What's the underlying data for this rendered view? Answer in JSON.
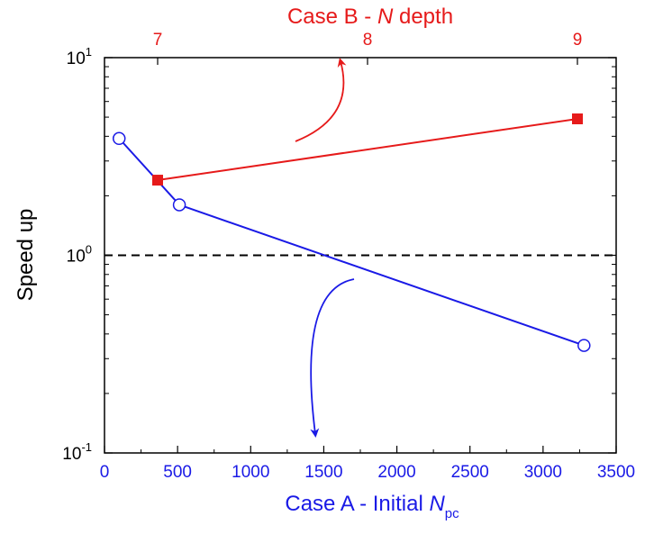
{
  "chart_data": {
    "type": "line",
    "ylabel": "Speed up",
    "ylim": [
      0.1,
      10
    ],
    "yscale": "log",
    "grid": false,
    "reference_line": {
      "y": 1,
      "style": "dashed",
      "color": "#000000"
    },
    "bottom_axis": {
      "label_prefix": "Case A - Initial ",
      "label_var": "N",
      "label_sub": "pc",
      "xlim": [
        0,
        3500
      ],
      "ticks": [
        0,
        500,
        1000,
        1500,
        2000,
        2500,
        3000,
        3500
      ],
      "tick_labels": [
        "0",
        "500",
        "1000",
        "1500",
        "2000",
        "2500",
        "3000",
        "3500"
      ],
      "color": "#1a1ae6"
    },
    "top_axis": {
      "label_prefix": "Case B - ",
      "label_var": "N",
      "label_suffix": " depth",
      "ticks": [
        7,
        8,
        9
      ],
      "tick_labels": [
        "7",
        "8",
        "9"
      ],
      "color": "#e61a1a"
    },
    "y_ticks": [
      {
        "value": 0.1,
        "base": "10",
        "exp": "-1"
      },
      {
        "value": 1,
        "base": "10",
        "exp": "0"
      },
      {
        "value": 10,
        "base": "10",
        "exp": "1"
      }
    ],
    "series": [
      {
        "axis": "bottom",
        "color": "#1a1ae6",
        "marker": "open-circle",
        "x": [
          100,
          512,
          3280
        ],
        "y": [
          3.9,
          1.8,
          0.35
        ]
      },
      {
        "axis": "top",
        "color": "#e61a1a",
        "marker": "filled-square",
        "x": [
          7,
          9
        ],
        "y": [
          2.4,
          4.9
        ]
      }
    ]
  }
}
